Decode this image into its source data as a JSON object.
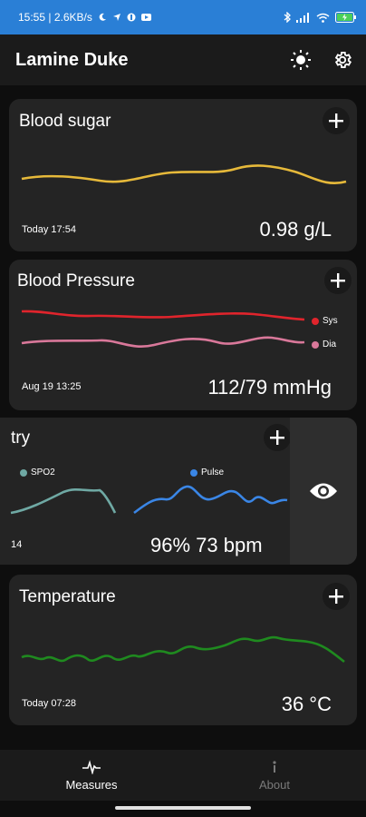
{
  "status_bar": {
    "left_text": "15:55 | 2.6KB/s",
    "icons_left": [
      "moon-icon",
      "navigation-icon",
      "app-icon",
      "youtube-icon"
    ],
    "icons_right": [
      "bluetooth-icon",
      "signal-icon",
      "wifi-icon",
      "battery-icon"
    ],
    "battery_level": "charging"
  },
  "app_bar": {
    "title": "Lamine Duke",
    "actions": [
      "brightness-icon",
      "settings-icon"
    ]
  },
  "cards": {
    "blood_sugar": {
      "title": "Blood sugar",
      "timestamp": "Today 17:54",
      "value": "0.98 g/L",
      "color": "#e6b93a"
    },
    "blood_pressure": {
      "title": "Blood Pressure",
      "timestamp": "Aug 19 13:25",
      "value": "112/79 mmHg",
      "legend": [
        {
          "label": "Sys",
          "color": "#e0242c"
        },
        {
          "label": "Dia",
          "color": "#d9789a"
        }
      ]
    },
    "oximetry": {
      "title": "try",
      "timestamp": "14",
      "value": "96% 73 bpm",
      "legend": [
        {
          "label": "SPO2",
          "color": "#6fa9a4"
        },
        {
          "label": "Pulse",
          "color": "#3a86e6"
        }
      ],
      "side_icon": "eye-icon"
    },
    "temperature": {
      "title": "Temperature",
      "timestamp": "Today 07:28",
      "value": "36 °C",
      "color": "#1f8a1f"
    }
  },
  "bottom_nav": {
    "items": [
      {
        "label": "Measures",
        "icon": "pulse-icon",
        "active": true
      },
      {
        "label": "About",
        "icon": "info-icon",
        "active": false
      }
    ]
  }
}
